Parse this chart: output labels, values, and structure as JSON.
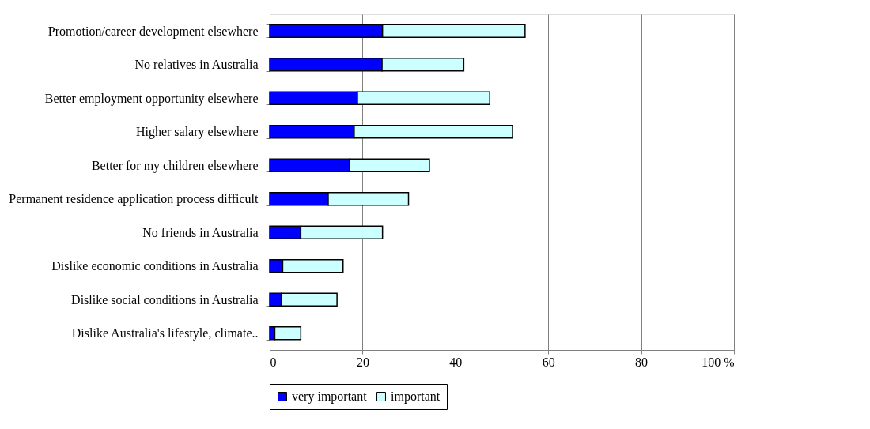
{
  "chart_data": {
    "type": "bar",
    "orientation": "horizontal",
    "stacked": true,
    "categories": [
      "Promotion/career development elsewhere",
      "No relatives in Australia",
      "Better employment opportunity elsewhere",
      "Higher salary elsewhere",
      "Better for my children elsewhere",
      "Permanent residence application process difficult",
      "No friends in Australia",
      "Dislike economic conditions in Australia",
      "Dislike social conditions in Australia",
      "Dislike Australia's lifestyle, climate.."
    ],
    "series": [
      {
        "name": "very important",
        "color": "#0000ff",
        "values": [
          24.3,
          24.2,
          18.9,
          18.2,
          17.2,
          12.6,
          6.7,
          2.8,
          2.5,
          1.1
        ]
      },
      {
        "name": "important",
        "color": "#ccffff",
        "values": [
          30.7,
          17.6,
          28.5,
          34.1,
          17.2,
          17.3,
          17.6,
          13.0,
          12.0,
          5.6
        ]
      }
    ],
    "xlim": [
      0,
      100
    ],
    "xticks": [
      0,
      20,
      40,
      60,
      80,
      {
        "value": 100,
        "label": "100 %"
      }
    ],
    "grid": "x",
    "legend": "bottom"
  }
}
